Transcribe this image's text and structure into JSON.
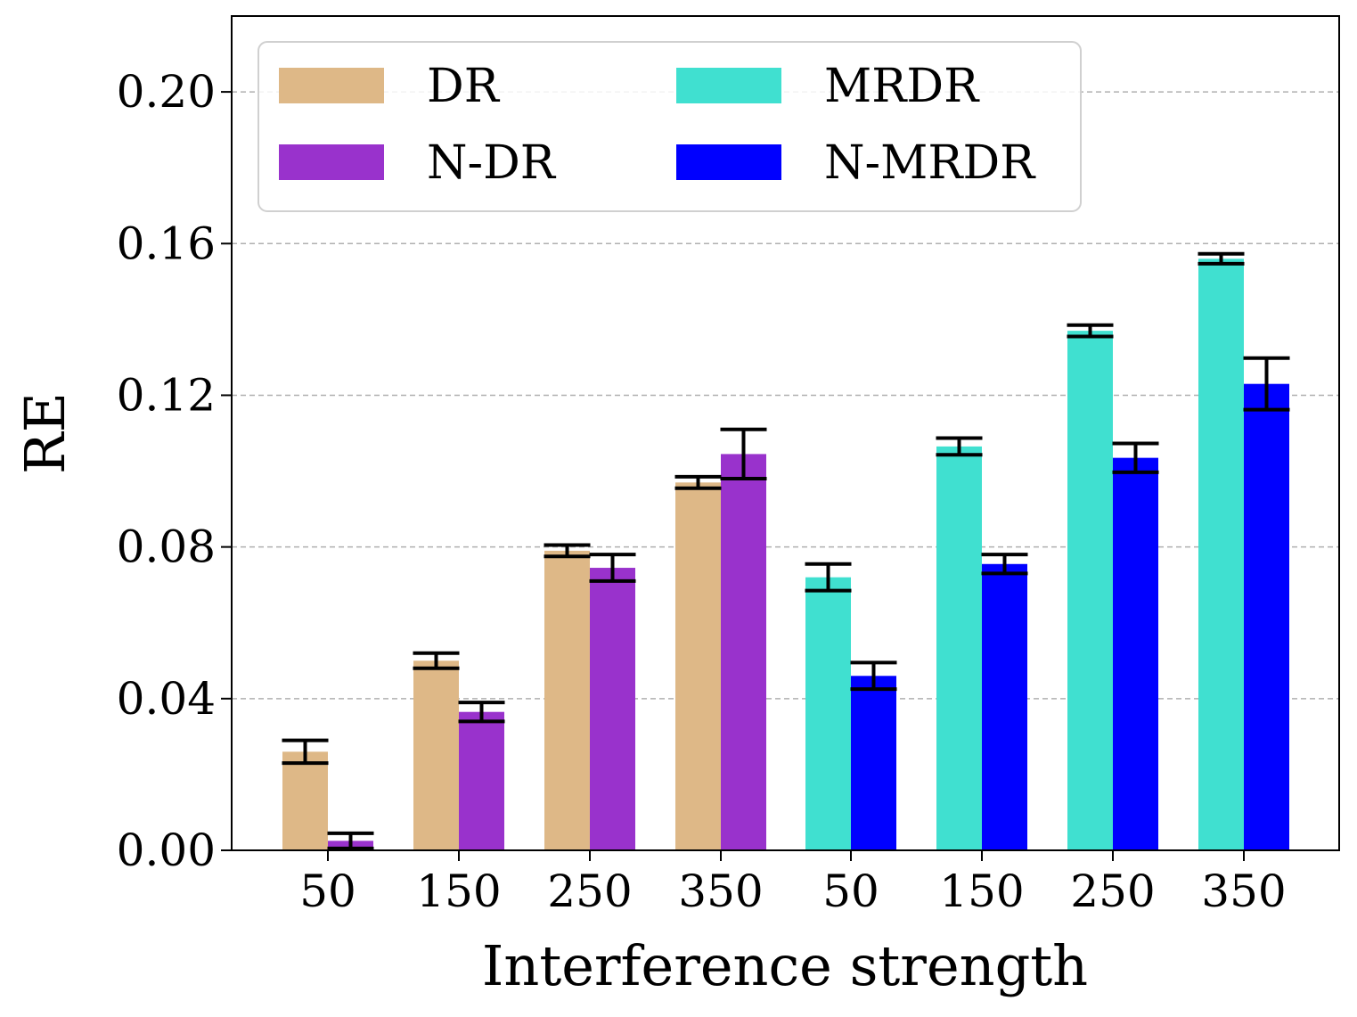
{
  "chart_data": {
    "type": "bar",
    "title": "",
    "xlabel": "Interference strength",
    "ylabel": "RE",
    "ylim": [
      0,
      0.22
    ],
    "yticks": [
      "0.00",
      "0.04",
      "0.08",
      "0.12",
      "0.16",
      "0.20"
    ],
    "grid": "horizontal dashed",
    "legend_position": "top-left",
    "groups": [
      {
        "categories": [
          "50",
          "150",
          "250",
          "350"
        ],
        "series": [
          {
            "name": "DR",
            "color": "#deb887",
            "values": [
              0.026,
              0.05,
              0.079,
              0.097
            ],
            "errors": [
              0.003,
              0.002,
              0.0015,
              0.0015
            ]
          },
          {
            "name": "N-DR",
            "color": "#9932cc",
            "values": [
              0.0025,
              0.0365,
              0.0745,
              0.1045
            ],
            "errors": [
              0.002,
              0.0025,
              0.0035,
              0.0065
            ]
          }
        ]
      },
      {
        "categories": [
          "50",
          "150",
          "250",
          "350"
        ],
        "series": [
          {
            "name": "MRDR",
            "color": "#40e0d0",
            "values": [
              0.072,
              0.1065,
              0.137,
              0.156
            ],
            "errors": [
              0.0035,
              0.0022,
              0.0015,
              0.0013
            ]
          },
          {
            "name": "N-MRDR",
            "color": "#0000ff",
            "values": [
              0.046,
              0.0755,
              0.1035,
              0.123
            ],
            "errors": [
              0.0035,
              0.0025,
              0.0038,
              0.0068
            ]
          }
        ]
      }
    ],
    "legend": [
      {
        "label": "DR",
        "color": "#deb887"
      },
      {
        "label": "MRDR",
        "color": "#40e0d0"
      },
      {
        "label": "N-DR",
        "color": "#9932cc"
      },
      {
        "label": "N-MRDR",
        "color": "#0000ff"
      }
    ]
  }
}
